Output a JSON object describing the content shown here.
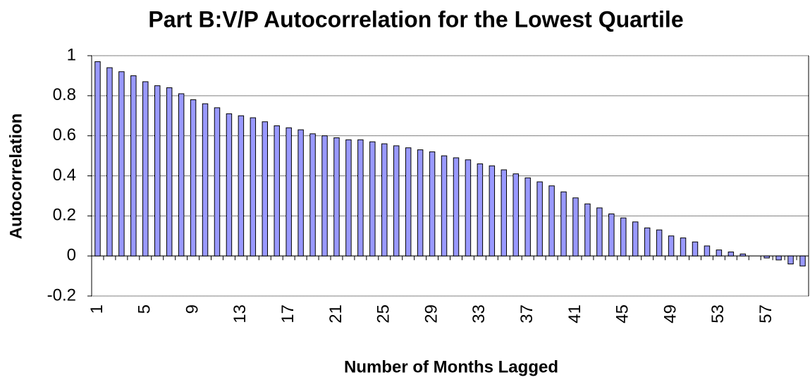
{
  "chart_data": {
    "type": "bar",
    "title": "Part B:V/P Autocorrelation for the Lowest Quartile",
    "x_label": "Number of Months Lagged",
    "y_label": "Autocorrelation",
    "categories": [
      "1",
      null,
      null,
      null,
      "5",
      null,
      null,
      null,
      "9",
      null,
      null,
      null,
      "13",
      null,
      null,
      null,
      "17",
      null,
      null,
      null,
      "21",
      null,
      null,
      null,
      "25",
      null,
      null,
      null,
      "29",
      null,
      null,
      null,
      "33",
      null,
      null,
      null,
      "37",
      null,
      null,
      null,
      "41",
      null,
      null,
      null,
      "45",
      null,
      null,
      null,
      "49",
      null,
      null,
      null,
      "53",
      null,
      null,
      null,
      "57",
      null,
      null,
      null
    ],
    "values": [
      0.97,
      0.94,
      0.92,
      0.9,
      0.87,
      0.85,
      0.84,
      0.81,
      0.78,
      0.76,
      0.74,
      0.71,
      0.7,
      0.69,
      0.67,
      0.65,
      0.64,
      0.63,
      0.61,
      0.6,
      0.59,
      0.58,
      0.58,
      0.57,
      0.56,
      0.55,
      0.54,
      0.53,
      0.52,
      0.5,
      0.49,
      0.48,
      0.46,
      0.45,
      0.43,
      0.41,
      0.39,
      0.37,
      0.35,
      0.32,
      0.29,
      0.26,
      0.24,
      0.21,
      0.19,
      0.17,
      0.14,
      0.13,
      0.1,
      0.09,
      0.07,
      0.05,
      0.03,
      0.02,
      0.01,
      0,
      -0.01,
      -0.02,
      -0.04,
      -0.05
    ],
    "color": "#9999ff",
    "ylim": [
      -0.2,
      1
    ],
    "yticks": [
      -0.2,
      0,
      0.2,
      0.4,
      0.6,
      0.8,
      1
    ],
    "grid": true
  }
}
